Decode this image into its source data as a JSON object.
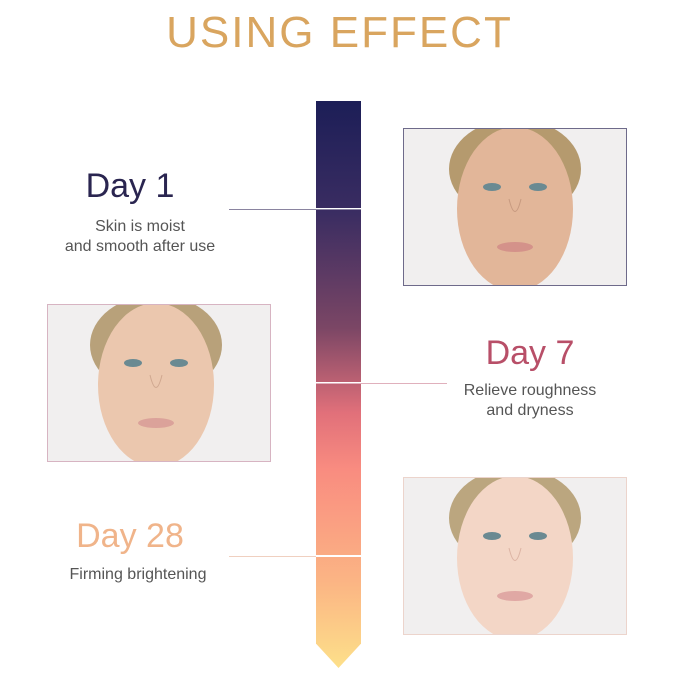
{
  "title": "USING EFFECT",
  "colors": {
    "title": "#d9a55f",
    "day1": "#2a2550",
    "day7": "#b84f68",
    "day28": "#f0b48a",
    "bar_top": "#1c1e57",
    "bar_bottom": "#fde08a"
  },
  "stages": [
    {
      "day": "Day 1",
      "desc_line1": "Skin is moist",
      "desc_line2": "and smooth after use"
    },
    {
      "day": "Day 7",
      "desc_line1": "Relieve roughness",
      "desc_line2": "and dryness"
    },
    {
      "day": "Day 28",
      "desc_line1": "Firming brightening",
      "desc_line2": ""
    }
  ],
  "photos": [
    {
      "icon": "face-photo-day1"
    },
    {
      "icon": "face-photo-day7"
    },
    {
      "icon": "face-photo-day28"
    }
  ]
}
